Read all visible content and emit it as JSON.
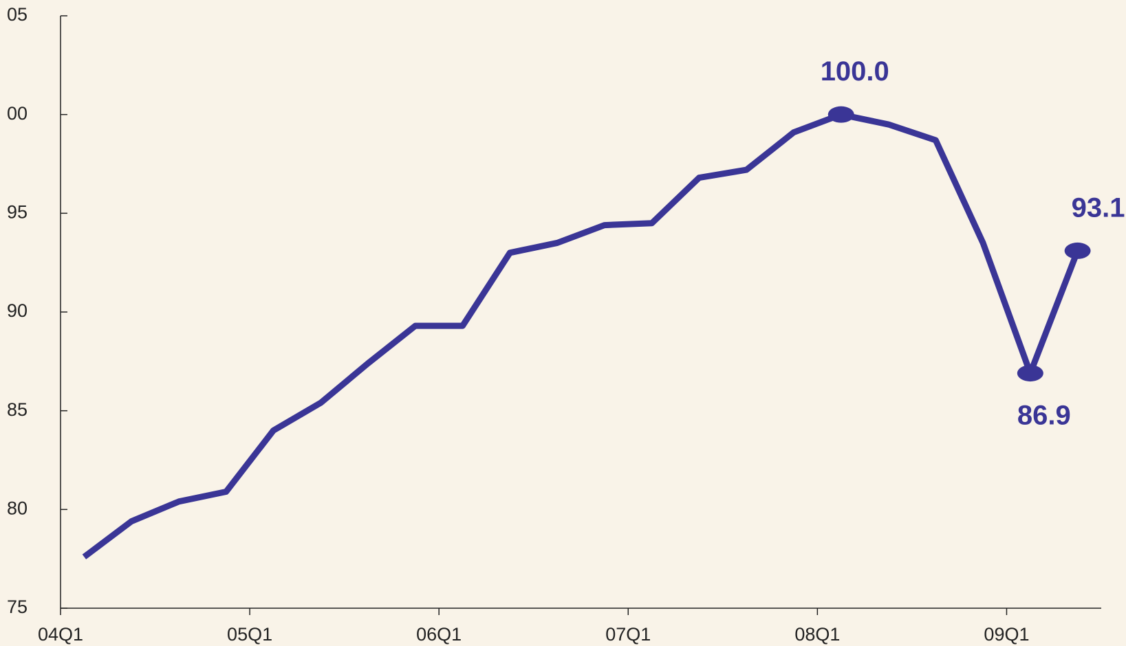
{
  "chart_data": {
    "type": "line",
    "categories": [
      "04Q1",
      null,
      null,
      null,
      "05Q1",
      null,
      null,
      null,
      "06Q1",
      null,
      null,
      null,
      "07Q1",
      null,
      null,
      null,
      "08Q1",
      null,
      null,
      null,
      "09Q1",
      null
    ],
    "series": [
      {
        "color": "#3a3596",
        "values": [
          77.6,
          79.4,
          80.4,
          80.9,
          84.0,
          85.4,
          87.4,
          89.3,
          89.3,
          93.0,
          93.5,
          94.4,
          94.5,
          96.8,
          97.2,
          99.1,
          100.0,
          99.5,
          98.7,
          93.5,
          86.9,
          93.1
        ],
        "value_labels": [
          null,
          null,
          null,
          null,
          null,
          null,
          null,
          null,
          null,
          null,
          null,
          null,
          null,
          null,
          null,
          null,
          "100.0",
          null,
          null,
          null,
          "86.9",
          "93.1"
        ]
      }
    ],
    "ylim": [
      75,
      105
    ],
    "yticks": [
      75,
      80,
      85,
      90,
      95,
      {
        "value": 100,
        "label": "00"
      },
      {
        "value": 105,
        "label": "05"
      }
    ]
  }
}
